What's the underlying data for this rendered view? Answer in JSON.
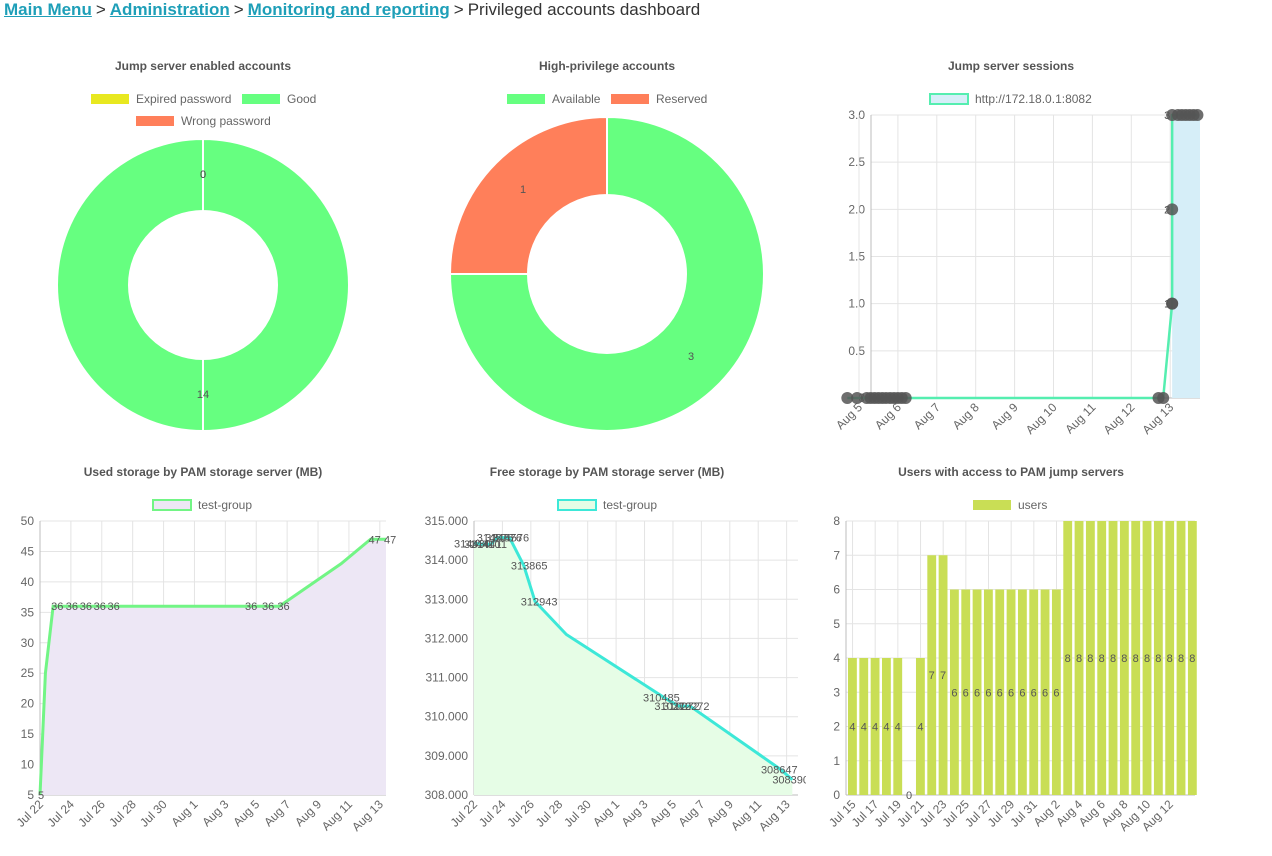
{
  "breadcrumb": {
    "items": [
      "Main Menu",
      "Administration",
      "Monitoring and reporting"
    ],
    "separator": ">",
    "current": "Privileged accounts dashboard"
  },
  "colors": {
    "link": "#1e9fb8",
    "good": "#66ff80",
    "expired": "#e8e820",
    "wrong": "#ff7f5a",
    "session_line": "#55eeb0",
    "session_fill": "#d6eef8",
    "used_line": "#72f585",
    "used_fill": "#ede7f5",
    "free_line": "#3de8d8",
    "free_fill": "#e6fde6",
    "users_bar": "#c9de55"
  },
  "chart_data": [
    {
      "id": "jump-accounts",
      "type": "pie",
      "title": "Jump server enabled accounts",
      "labels": [
        "Expired password",
        "Good",
        "Wrong password"
      ],
      "values": [
        0,
        14,
        0
      ],
      "legend": "top"
    },
    {
      "id": "high-priv",
      "type": "pie",
      "title": "High-privilege accounts",
      "labels": [
        "Available",
        "Reserved"
      ],
      "values": [
        3,
        1
      ],
      "legend": "top"
    },
    {
      "id": "sessions",
      "type": "line",
      "title": "Jump server sessions",
      "series": [
        {
          "name": "http://172.18.0.1:8082"
        }
      ],
      "x_ticks": [
        "Aug 5",
        "Aug 6",
        "Aug 7",
        "Aug 8",
        "Aug 9",
        "Aug 10",
        "Aug 11",
        "Aug 12",
        "Aug 13"
      ],
      "y_ticks": [
        "0",
        "0.5",
        "1.0",
        "1.5",
        "2.0",
        "2.5",
        "3.0"
      ],
      "ylim": [
        0,
        3
      ],
      "points": [
        {
          "day": -0.3,
          "y": 0
        },
        {
          "day": -0.05,
          "y": 0
        },
        {
          "day": 0.2,
          "y": 0
        },
        {
          "day": 0.3,
          "y": 0
        },
        {
          "day": 0.4,
          "y": 0
        },
        {
          "day": 0.5,
          "y": 0
        },
        {
          "day": 0.6,
          "y": 0
        },
        {
          "day": 0.7,
          "y": 0
        },
        {
          "day": 0.8,
          "y": 0
        },
        {
          "day": 0.9,
          "y": 0
        },
        {
          "day": 1.0,
          "y": 0
        },
        {
          "day": 1.1,
          "y": 0
        },
        {
          "day": 1.2,
          "y": 0
        },
        {
          "day": 7.7,
          "y": 0
        },
        {
          "day": 7.82,
          "y": 0
        },
        {
          "day": 8.05,
          "y": 1
        },
        {
          "day": 8.05,
          "y": 1
        },
        {
          "day": 8.05,
          "y": 2
        },
        {
          "day": 8.05,
          "y": 3
        },
        {
          "day": 8.2,
          "y": 3
        },
        {
          "day": 8.3,
          "y": 3
        },
        {
          "day": 8.4,
          "y": 3
        },
        {
          "day": 8.5,
          "y": 3
        },
        {
          "day": 8.6,
          "y": 3
        },
        {
          "day": 8.7,
          "y": 3
        }
      ],
      "point_labels": [
        {
          "day": 8.05,
          "y": 1,
          "text": "1"
        },
        {
          "day": 8.05,
          "y": 1,
          "text": "1"
        },
        {
          "day": 8.05,
          "y": 2,
          "text": "2"
        },
        {
          "day": 8.05,
          "y": 3,
          "text": "3"
        }
      ]
    },
    {
      "id": "used-storage",
      "type": "area",
      "title": "Used storage by PAM storage server (MB)",
      "series": [
        {
          "name": "test-group"
        }
      ],
      "x_ticks": [
        "Jul 22",
        "Jul 24",
        "Jul 26",
        "Jul 28",
        "Jul 30",
        "Aug 1",
        "Aug 3",
        "Aug 5",
        "Aug 7",
        "Aug 9",
        "Aug 11",
        "Aug 13"
      ],
      "y_ticks": [
        "5",
        "10",
        "15",
        "20",
        "25",
        "30",
        "35",
        "40",
        "45",
        "50"
      ],
      "ylim": [
        5,
        50
      ],
      "points": [
        {
          "day": 0,
          "y": 5
        },
        {
          "day": 0.35,
          "y": 25
        },
        {
          "day": 0.85,
          "y": 36
        },
        {
          "day": 1.3,
          "y": 36
        },
        {
          "day": 2,
          "y": 36
        },
        {
          "day": 3,
          "y": 36
        },
        {
          "day": 4,
          "y": 36
        },
        {
          "day": 5,
          "y": 36
        },
        {
          "day": 13.4,
          "y": 36
        },
        {
          "day": 14.5,
          "y": 36
        },
        {
          "day": 15.5,
          "y": 36
        },
        {
          "day": 19.5,
          "y": 43
        },
        {
          "day": 21.4,
          "y": 47
        },
        {
          "day": 22.4,
          "y": 47
        }
      ],
      "point_labels": [
        {
          "day": 0,
          "y": 5,
          "text": "5"
        },
        {
          "day": 0.85,
          "y": 36,
          "text": "36"
        },
        {
          "day": 1.8,
          "y": 36,
          "text": "36"
        },
        {
          "day": 2.7,
          "y": 36,
          "text": "36"
        },
        {
          "day": 3.6,
          "y": 36,
          "text": "36"
        },
        {
          "day": 4.5,
          "y": 36,
          "text": "36"
        },
        {
          "day": 13.4,
          "y": 36,
          "text": "36"
        },
        {
          "day": 14.5,
          "y": 36,
          "text": "36"
        },
        {
          "day": 15.5,
          "y": 36,
          "text": "36"
        },
        {
          "day": 21.4,
          "y": 47,
          "text": "47"
        },
        {
          "day": 22.4,
          "y": 47,
          "text": "47"
        }
      ]
    },
    {
      "id": "free-storage",
      "type": "area",
      "title": "Free storage by PAM storage server (MB)",
      "series": [
        {
          "name": "test-group"
        }
      ],
      "x_ticks": [
        "Jul 22",
        "Jul 24",
        "Jul 26",
        "Jul 28",
        "Jul 30",
        "Aug 1",
        "Aug 3",
        "Aug 5",
        "Aug 7",
        "Aug 9",
        "Aug 11",
        "Aug 13"
      ],
      "y_ticks": [
        "308.000",
        "309.000",
        "310.000",
        "311.000",
        "312.000",
        "313.000",
        "314.000",
        "315.000"
      ],
      "ylim": [
        308000,
        315000
      ],
      "points": [
        {
          "day": 0,
          "y": 314430
        },
        {
          "day": 0.6,
          "y": 314410
        },
        {
          "day": 1.2,
          "y": 314411
        },
        {
          "day": 1.6,
          "y": 314576
        },
        {
          "day": 2.1,
          "y": 314576
        },
        {
          "day": 2.5,
          "y": 314576
        },
        {
          "day": 3.5,
          "y": 313865
        },
        {
          "day": 4.3,
          "y": 312943
        },
        {
          "day": 6.5,
          "y": 312100
        },
        {
          "day": 13.4,
          "y": 310485
        },
        {
          "day": 14.4,
          "y": 310272
        },
        {
          "day": 15.2,
          "y": 310272
        },
        {
          "day": 21.6,
          "y": 308647
        },
        {
          "day": 22.4,
          "y": 308390
        }
      ],
      "point_labels": [
        {
          "day": 0,
          "y": 314430,
          "text": "314430"
        },
        {
          "day": 0.7,
          "y": 314410,
          "text": "314410"
        },
        {
          "day": 1.2,
          "y": 314411,
          "text": "314411"
        },
        {
          "day": 1.6,
          "y": 314576,
          "text": "314576"
        },
        {
          "day": 2.2,
          "y": 314576,
          "text": "314576"
        },
        {
          "day": 2.7,
          "y": 314576,
          "text": "314576"
        },
        {
          "day": 4.0,
          "y": 313865,
          "text": "313865"
        },
        {
          "day": 4.7,
          "y": 312943,
          "text": "312943"
        },
        {
          "day": 13.3,
          "y": 310485,
          "text": "310485"
        },
        {
          "day": 14.1,
          "y": 310272,
          "text": "310272"
        },
        {
          "day": 14.7,
          "y": 310272,
          "text": "310272"
        },
        {
          "day": 15.4,
          "y": 310272,
          "text": "310272"
        },
        {
          "day": 21.6,
          "y": 308647,
          "text": "308647"
        },
        {
          "day": 22.4,
          "y": 308390,
          "text": "308390"
        }
      ]
    },
    {
      "id": "users",
      "type": "bar",
      "title": "Users with access to PAM jump servers",
      "series": [
        {
          "name": "users"
        }
      ],
      "x_ticks": [
        "Jul 15",
        "Jul 17",
        "Jul 19",
        "Jul 21",
        "Jul 23",
        "Jul 25",
        "Jul 27",
        "Jul 29",
        "Jul 31",
        "Aug 2",
        "Aug 4",
        "Aug 6",
        "Aug 8",
        "Aug 10",
        "Aug 12"
      ],
      "y_ticks": [
        "0",
        "1",
        "2",
        "3",
        "4",
        "5",
        "6",
        "7",
        "8"
      ],
      "ylim": [
        0,
        8
      ],
      "values": [
        4,
        4,
        4,
        4,
        4,
        0,
        4,
        7,
        7,
        6,
        6,
        6,
        6,
        6,
        6,
        6,
        6,
        6,
        6,
        8,
        8,
        8,
        8,
        8,
        8,
        8,
        8,
        8,
        8,
        8,
        8
      ]
    }
  ]
}
